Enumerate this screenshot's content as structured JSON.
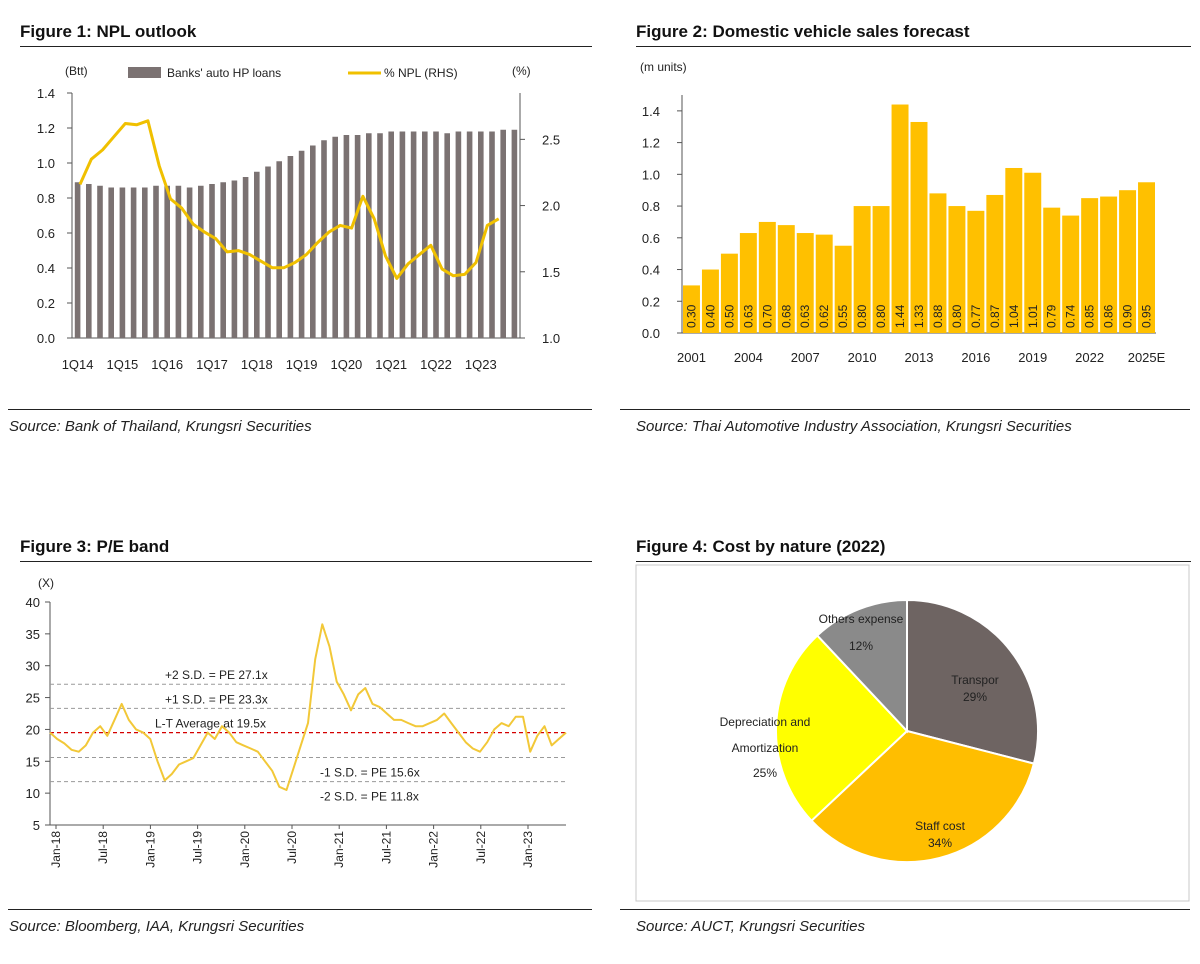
{
  "figures": [
    {
      "title": "Figure 1: NPL outlook",
      "source": "Source: Bank of Thailand, Krungsri Securities",
      "chart_data": {
        "type": "bar+line",
        "left_unit": "(Btt)",
        "right_unit": "(%)",
        "legend": [
          "Banks' auto HP loans",
          "% NPL (RHS)"
        ],
        "y_left_ticks": [
          "0.0",
          "0.2",
          "0.4",
          "0.6",
          "0.8",
          "1.0",
          "1.2",
          "1.4"
        ],
        "y_left_range": [
          0,
          1.4
        ],
        "y_right_ticks": [
          "1.0",
          "1.5",
          "2.0",
          "2.5"
        ],
        "y_right_range": [
          1.0,
          2.85
        ],
        "x_tick_labels": [
          "1Q14",
          "1Q15",
          "1Q16",
          "1Q17",
          "1Q18",
          "1Q19",
          "1Q20",
          "1Q21",
          "1Q22",
          "1Q23"
        ],
        "x_tick_every": 4,
        "series": [
          {
            "name": "Banks' auto HP loans",
            "kind": "bar",
            "axis": "left",
            "values": [
              0.89,
              0.88,
              0.87,
              0.86,
              0.86,
              0.86,
              0.86,
              0.87,
              0.87,
              0.87,
              0.86,
              0.87,
              0.88,
              0.89,
              0.9,
              0.92,
              0.95,
              0.98,
              1.01,
              1.04,
              1.07,
              1.1,
              1.13,
              1.15,
              1.16,
              1.16,
              1.17,
              1.17,
              1.18,
              1.18,
              1.18,
              1.18,
              1.18,
              1.17,
              1.18,
              1.18,
              1.18,
              1.18,
              1.19,
              1.19
            ]
          },
          {
            "name": "% NPL (RHS)",
            "kind": "line",
            "axis": "right",
            "values": [
              2.16,
              2.35,
              2.42,
              2.52,
              2.62,
              2.61,
              2.64,
              2.3,
              2.05,
              1.98,
              1.86,
              1.8,
              1.75,
              1.65,
              1.66,
              1.63,
              1.58,
              1.53,
              1.53,
              1.57,
              1.63,
              1.72,
              1.8,
              1.85,
              1.83,
              2.07,
              1.9,
              1.62,
              1.45,
              1.56,
              1.63,
              1.7,
              1.52,
              1.47,
              1.48,
              1.57,
              1.85,
              1.9
            ]
          }
        ]
      }
    },
    {
      "title": "Figure 2: Domestic vehicle sales forecast",
      "source": "Source: Thai Automotive Industry Association, Krungsri Securities",
      "chart_data": {
        "type": "bar",
        "unit": "(m units)",
        "y_ticks": [
          "0.0",
          "0.2",
          "0.4",
          "0.6",
          "0.8",
          "1.0",
          "1.2",
          "1.4"
        ],
        "y_range": [
          0,
          1.5
        ],
        "x_tick_labels": [
          "2001",
          "2004",
          "2007",
          "2010",
          "2013",
          "2016",
          "2019",
          "2022",
          "2025E"
        ],
        "categories": [
          "2001",
          "2002",
          "2003",
          "2004",
          "2005",
          "2006",
          "2007",
          "2008",
          "2009",
          "2010",
          "2011",
          "2012",
          "2013",
          "2014",
          "2015",
          "2016",
          "2017",
          "2018",
          "2019",
          "2020",
          "2021",
          "2022",
          "2023",
          "2024",
          "2025E"
        ],
        "values": [
          0.3,
          0.4,
          0.5,
          0.63,
          0.7,
          0.68,
          0.63,
          0.62,
          0.55,
          0.8,
          0.8,
          1.44,
          1.33,
          0.88,
          0.8,
          0.77,
          0.87,
          1.04,
          1.01,
          0.79,
          0.74,
          0.85,
          0.86,
          0.9,
          0.95
        ],
        "labels": [
          "0.30",
          "0.40",
          "0.50",
          "0.63",
          "0.70",
          "0.68",
          "0.63",
          "0.62",
          "0.55",
          "0.80",
          "0.80",
          "1.44",
          "1.33",
          "0.88",
          "0.80",
          "0.77",
          "0.87",
          "1.04",
          "1.01",
          "0.79",
          "0.74",
          "0.85",
          "0.86",
          "0.90",
          "0.95"
        ]
      }
    },
    {
      "title": "Figure 3: P/E band",
      "source": "Source: Bloomberg, IAA, Krungsri Securities",
      "chart_data": {
        "type": "line",
        "unit": "(X)",
        "y_ticks": [
          "5",
          "10",
          "15",
          "20",
          "25",
          "30",
          "35",
          "40"
        ],
        "y_range": [
          5,
          40
        ],
        "x_tick_labels": [
          "Jan-18",
          "Jul-18",
          "Jan-19",
          "Jul-19",
          "Jan-20",
          "Jul-20",
          "Jan-21",
          "Jul-21",
          "Jan-22",
          "Jul-22",
          "Jan-23"
        ],
        "bands": [
          {
            "label": "+2 S.D. = PE 27.1x",
            "value": 27.1
          },
          {
            "label": "+1 S.D. = PE 23.3x",
            "value": 23.3
          },
          {
            "label": "L-T Average at 19.5x",
            "value": 19.5,
            "average": true
          },
          {
            "label": "-1 S.D. = PE 15.6x",
            "value": 15.6
          },
          {
            "label": "-2 S.D. = PE 11.8x",
            "value": 11.8
          }
        ],
        "series": [
          {
            "name": "P/E",
            "values": [
              19.5,
              18.5,
              17.8,
              16.8,
              16.5,
              17.5,
              19.5,
              20.5,
              19.0,
              21.5,
              24.0,
              21.5,
              20.0,
              19.5,
              18.5,
              15.0,
              12.0,
              13.0,
              14.5,
              15.0,
              15.5,
              17.5,
              19.5,
              18.5,
              20.5,
              19.5,
              18.0,
              17.5,
              17.0,
              16.5,
              15.0,
              13.5,
              11.0,
              10.5,
              14.0,
              17.5,
              21.0,
              31.0,
              36.5,
              33.0,
              27.5,
              25.5,
              23.0,
              25.5,
              26.5,
              24.0,
              23.5,
              22.5,
              21.5,
              21.5,
              21.0,
              20.5,
              20.5,
              21.0,
              21.5,
              22.5,
              21.0,
              19.5,
              18.0,
              17.0,
              16.5,
              18.0,
              20.0,
              21.0,
              20.5,
              22.0,
              22.0,
              16.5,
              19.0,
              20.5,
              17.5,
              18.5,
              19.5
            ]
          }
        ]
      }
    },
    {
      "title": "Figure 4: Cost by nature (2022)",
      "source": "Source: AUCT, Krungsri Securities",
      "chart_data": {
        "type": "pie",
        "slices": [
          {
            "name": "Transpor",
            "pct_label": "29%",
            "value": 29,
            "color": "#6E6462"
          },
          {
            "name": "Staff cost",
            "pct_label": "34%",
            "value": 34,
            "color": "#FFBE00"
          },
          {
            "name": "Depreciation and Amortization",
            "name_lines": [
              "Depreciation and",
              "Amortization"
            ],
            "pct_label": "25%",
            "value": 25,
            "color": "#FFFF00"
          },
          {
            "name": "Others expense",
            "pct_label": "12%",
            "value": 12,
            "color": "#8A8A8A"
          }
        ]
      }
    }
  ],
  "colors": {
    "bar_gray": "#7B7272",
    "npl_line": "#F0C000",
    "yellow_bar": "#FFC000",
    "pe_line": "#F2C838",
    "avg_line": "#D40000",
    "band_line": "#9A9A9A"
  }
}
